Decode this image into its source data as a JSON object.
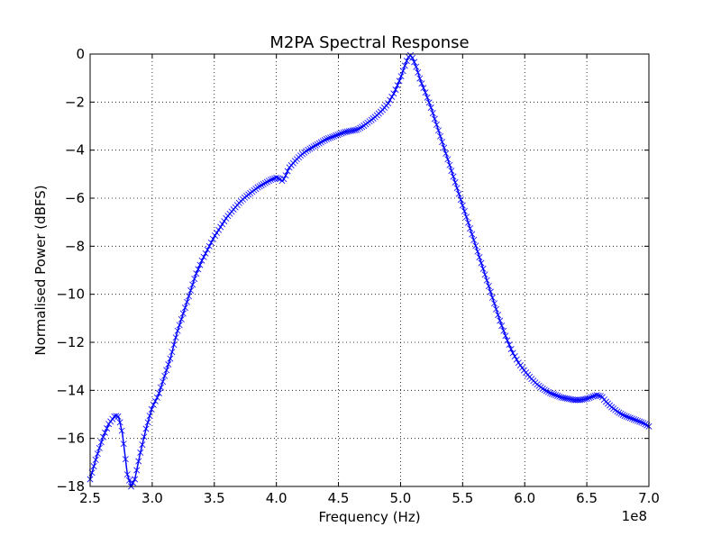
{
  "chart_data": {
    "type": "line",
    "title": "M2PA Spectral Response",
    "xlabel": "Frequency (Hz)",
    "ylabel": "Normalised Power (dBFS)",
    "x_offset_label": "1e8",
    "xlim": [
      2.5,
      7.0
    ],
    "ylim": [
      -18,
      0
    ],
    "xticks": [
      2.5,
      3.0,
      3.5,
      4.0,
      4.5,
      5.0,
      5.5,
      6.0,
      6.5,
      7.0
    ],
    "xtick_labels": [
      "2.5",
      "3.0",
      "3.5",
      "4.0",
      "4.5",
      "5.0",
      "5.5",
      "6.0",
      "6.5",
      "7.0"
    ],
    "yticks": [
      0,
      -2,
      -4,
      -6,
      -8,
      -10,
      -12,
      -14,
      -16,
      -18
    ],
    "ytick_labels": [
      "0",
      "−2",
      "−4",
      "−6",
      "−8",
      "−10",
      "−12",
      "−14",
      "−16",
      "−18"
    ],
    "grid": true,
    "marker": "x",
    "color": "#0000ff",
    "series": [
      {
        "x": [
          2.5,
          2.55,
          2.6,
          2.65,
          2.7,
          2.73,
          2.76,
          2.8,
          2.83,
          2.86,
          2.9,
          2.95,
          3.0,
          3.05,
          3.1,
          3.15,
          3.2,
          3.25,
          3.3,
          3.35,
          3.4,
          3.45,
          3.5,
          3.55,
          3.6,
          3.65,
          3.7,
          3.75,
          3.8,
          3.85,
          3.9,
          3.95,
          4.0,
          4.03,
          4.05,
          4.08,
          4.1,
          4.15,
          4.2,
          4.25,
          4.3,
          4.35,
          4.4,
          4.45,
          4.5,
          4.55,
          4.6,
          4.65,
          4.7,
          4.75,
          4.8,
          4.85,
          4.9,
          4.95,
          5.0,
          5.03,
          5.06,
          5.08,
          5.1,
          5.13,
          5.16,
          5.2,
          5.25,
          5.3,
          5.35,
          5.4,
          5.45,
          5.5,
          5.55,
          5.6,
          5.65,
          5.7,
          5.75,
          5.8,
          5.85,
          5.9,
          5.95,
          6.0,
          6.05,
          6.1,
          6.15,
          6.2,
          6.25,
          6.3,
          6.35,
          6.4,
          6.45,
          6.5,
          6.55,
          6.58,
          6.62,
          6.65,
          6.7,
          6.75,
          6.8,
          6.85,
          6.9,
          6.95,
          7.0
        ],
        "y": [
          -17.7,
          -16.8,
          -16.0,
          -15.4,
          -15.05,
          -15.1,
          -15.8,
          -17.5,
          -18.0,
          -17.7,
          -16.7,
          -15.6,
          -14.7,
          -14.2,
          -13.4,
          -12.6,
          -11.6,
          -10.8,
          -10.0,
          -9.2,
          -8.6,
          -8.1,
          -7.6,
          -7.2,
          -6.8,
          -6.5,
          -6.2,
          -5.95,
          -5.75,
          -5.55,
          -5.4,
          -5.25,
          -5.15,
          -5.2,
          -5.3,
          -5.0,
          -4.75,
          -4.45,
          -4.2,
          -4.0,
          -3.85,
          -3.7,
          -3.55,
          -3.45,
          -3.35,
          -3.25,
          -3.2,
          -3.15,
          -3.0,
          -2.8,
          -2.6,
          -2.35,
          -2.05,
          -1.6,
          -1.0,
          -0.55,
          -0.15,
          -0.05,
          -0.2,
          -0.6,
          -1.1,
          -1.6,
          -2.3,
          -3.1,
          -3.9,
          -4.7,
          -5.5,
          -6.3,
          -7.1,
          -7.9,
          -8.7,
          -9.5,
          -10.3,
          -11.1,
          -11.8,
          -12.4,
          -12.85,
          -13.2,
          -13.5,
          -13.75,
          -13.95,
          -14.1,
          -14.2,
          -14.3,
          -14.35,
          -14.4,
          -14.4,
          -14.35,
          -14.25,
          -14.2,
          -14.25,
          -14.45,
          -14.7,
          -14.9,
          -15.05,
          -15.15,
          -15.25,
          -15.35,
          -15.5
        ]
      }
    ]
  }
}
